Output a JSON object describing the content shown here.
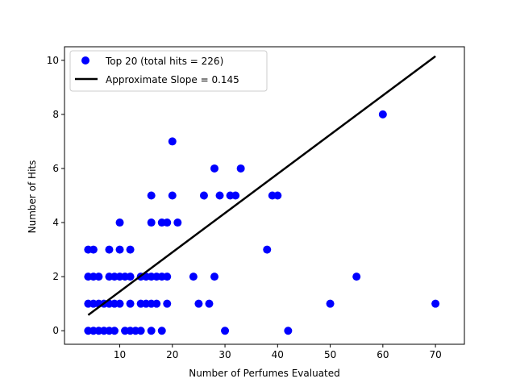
{
  "chart_data": {
    "type": "scatter",
    "title": "",
    "xlabel": "Number of Perfumes Evaluated",
    "ylabel": "Number of Hits",
    "xlim": [
      -0.5,
      75.5
    ],
    "ylim": [
      -0.5,
      10.5
    ],
    "xticks": [
      10,
      20,
      30,
      40,
      50,
      60,
      70
    ],
    "yticks": [
      0,
      2,
      4,
      6,
      8,
      10
    ],
    "grid": false,
    "legend_position": "top-left",
    "series": [
      {
        "name": "Top 20 (total hits = 226)",
        "kind": "scatter",
        "color": "#0000ff",
        "points": [
          [
            4,
            0
          ],
          [
            5,
            0
          ],
          [
            6,
            0
          ],
          [
            7,
            0
          ],
          [
            8,
            0
          ],
          [
            9,
            0
          ],
          [
            11,
            0
          ],
          [
            12,
            0
          ],
          [
            13,
            0
          ],
          [
            14,
            0
          ],
          [
            16,
            0
          ],
          [
            18,
            0
          ],
          [
            30,
            0
          ],
          [
            42,
            0
          ],
          [
            4,
            1
          ],
          [
            5,
            1
          ],
          [
            6,
            1
          ],
          [
            7,
            1
          ],
          [
            8,
            1
          ],
          [
            9,
            1
          ],
          [
            10,
            1
          ],
          [
            12,
            1
          ],
          [
            14,
            1
          ],
          [
            15,
            1
          ],
          [
            16,
            1
          ],
          [
            17,
            1
          ],
          [
            19,
            1
          ],
          [
            25,
            1
          ],
          [
            27,
            1
          ],
          [
            50,
            1
          ],
          [
            70,
            1
          ],
          [
            4,
            2
          ],
          [
            5,
            2
          ],
          [
            6,
            2
          ],
          [
            8,
            2
          ],
          [
            9,
            2
          ],
          [
            10,
            2
          ],
          [
            11,
            2
          ],
          [
            12,
            2
          ],
          [
            14,
            2
          ],
          [
            15,
            2
          ],
          [
            16,
            2
          ],
          [
            17,
            2
          ],
          [
            18,
            2
          ],
          [
            19,
            2
          ],
          [
            24,
            2
          ],
          [
            28,
            2
          ],
          [
            55,
            2
          ],
          [
            4,
            3
          ],
          [
            5,
            3
          ],
          [
            8,
            3
          ],
          [
            10,
            3
          ],
          [
            12,
            3
          ],
          [
            38,
            3
          ],
          [
            10,
            4
          ],
          [
            16,
            4
          ],
          [
            18,
            4
          ],
          [
            19,
            4
          ],
          [
            21,
            4
          ],
          [
            16,
            5
          ],
          [
            20,
            5
          ],
          [
            26,
            5
          ],
          [
            29,
            5
          ],
          [
            31,
            5
          ],
          [
            32,
            5
          ],
          [
            39,
            5
          ],
          [
            40,
            5
          ],
          [
            28,
            6
          ],
          [
            33,
            6
          ],
          [
            20,
            7
          ],
          [
            60,
            8
          ]
        ]
      },
      {
        "name": "Approximate Slope = 0.145",
        "kind": "line",
        "color": "#000000",
        "x": [
          4,
          70
        ],
        "y": [
          0.58,
          10.15
        ]
      }
    ]
  }
}
